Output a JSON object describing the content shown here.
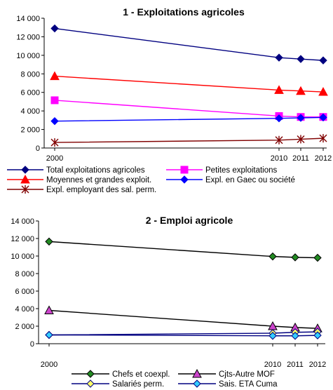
{
  "chart_data": [
    {
      "type": "line",
      "title": "1 - Exploitations agricoles",
      "x": [
        2000,
        2010,
        2011,
        2012
      ],
      "x_tick_labels": [
        "2000",
        "2010",
        "2011",
        "2012"
      ],
      "ylim": [
        0,
        14000
      ],
      "y_ticks": [
        0,
        2000,
        4000,
        6000,
        8000,
        10000,
        12000,
        14000
      ],
      "y_tick_labels": [
        "0",
        "2 000",
        "4 000",
        "6 000",
        "8 000",
        "10 000",
        "12 000",
        "14 000"
      ],
      "grid": false,
      "legend_placement": "bottom",
      "series": [
        {
          "name": "Total exploitations agricoles",
          "values": [
            12900,
            9750,
            9600,
            9450
          ],
          "color": "#000080",
          "marker": "diamond"
        },
        {
          "name": "Petites exploitations",
          "values": [
            5150,
            3450,
            3350,
            3350
          ],
          "color": "#FF00FF",
          "marker": "square"
        },
        {
          "name": "Moyennes et grandes exploit.",
          "values": [
            7750,
            6250,
            6150,
            6050
          ],
          "color": "#FF0000",
          "marker": "triangle"
        },
        {
          "name": "Expl. en Gaec ou société",
          "values": [
            2900,
            3200,
            3250,
            3300
          ],
          "color": "#0000FF",
          "marker": "diamond"
        },
        {
          "name": "Expl. employant des sal. perm.",
          "values": [
            600,
            850,
            950,
            1050
          ],
          "color": "#800000",
          "marker": "star"
        }
      ]
    },
    {
      "type": "line",
      "title": "2 - Emploi agricole",
      "x": [
        2000,
        2010,
        2011,
        2012
      ],
      "x_tick_labels": [
        "2000",
        "2010",
        "2011",
        "2012"
      ],
      "ylim": [
        0,
        14000
      ],
      "y_ticks": [
        0,
        2000,
        4000,
        6000,
        8000,
        10000,
        12000,
        14000
      ],
      "y_tick_labels": [
        "0",
        "2 000",
        "4 000",
        "6 000",
        "8 000",
        "10 000",
        "12 000",
        "14 000"
      ],
      "grid": false,
      "legend_placement": "bottom",
      "series": [
        {
          "name": "Chefs et coexpl.",
          "values": [
            11650,
            9950,
            9850,
            9800
          ],
          "color": "#000000",
          "fill": "#228B22",
          "marker": "diamond"
        },
        {
          "name": "Cjts-Autre MOF",
          "values": [
            3800,
            2000,
            1850,
            1750
          ],
          "color": "#000000",
          "fill": "#CC44CC",
          "marker": "triangle"
        },
        {
          "name": "Salariés perm.",
          "values": [
            1000,
            1200,
            1300,
            1350
          ],
          "color": "#000080",
          "fill": "#FFFF66",
          "marker": "diamond"
        },
        {
          "name": "Sais. ETA Cuma",
          "values": [
            1000,
            900,
            900,
            950
          ],
          "color": "#000080",
          "fill": "#33CCFF",
          "marker": "diamond"
        }
      ]
    }
  ]
}
